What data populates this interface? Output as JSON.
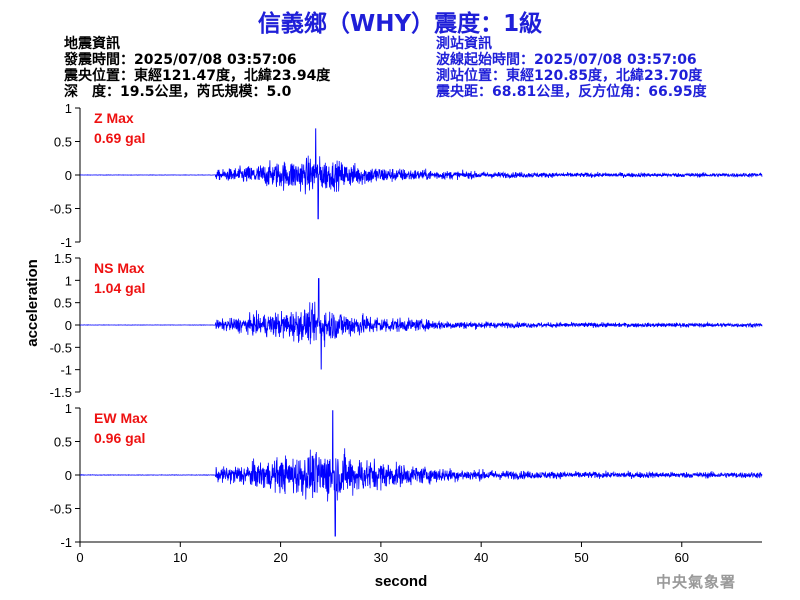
{
  "header": {
    "title": "信義鄉（WHY）震度：1級"
  },
  "earthquake_info": {
    "heading": "地震資訊",
    "origin_time": "發震時間：2025/07/08 03:57:06",
    "epicenter": "震央位置：東經121.47度，北緯23.94度",
    "depth_magnitude": "深　度：19.5公里，芮氏規模：5.0"
  },
  "station_info": {
    "heading": "測站資訊",
    "wave_start": "波線起始時間：2025/07/08 03:57:06",
    "station_location": "測站位置：東經120.85度，北緯23.70度",
    "distance_azimuth": "震央距：68.81公里，反方位角：66.95度"
  },
  "footer": {
    "agency": "中央氣象署"
  },
  "chart_data": {
    "type": "line",
    "xlabel": "second",
    "ylabel": "acceleration",
    "xlim": [
      0,
      68
    ],
    "x_ticks": [
      0,
      10,
      20,
      30,
      40,
      50,
      60
    ],
    "color": "#0000ff",
    "annotation_color": "#ee1111",
    "panels": [
      {
        "id": "z",
        "label": "Z Max",
        "max_value": "0.69 gal",
        "ylim": [
          -1,
          1
        ],
        "y_ticks": [
          1,
          0.5,
          0,
          -0.5,
          -1
        ],
        "peak": 0.69,
        "onset": 13.5,
        "peak_time": 23.5
      },
      {
        "id": "ns",
        "label": "NS Max",
        "max_value": "1.04 gal",
        "ylim": [
          -1.5,
          1.5
        ],
        "y_ticks": [
          1.5,
          1,
          0.5,
          0,
          -0.5,
          -1,
          -1.5
        ],
        "peak": 1.04,
        "onset": 13.5,
        "peak_time": 23.8
      },
      {
        "id": "ew",
        "label": "EW Max",
        "max_value": "0.96 gal",
        "ylim": [
          -1,
          1
        ],
        "y_ticks": [
          1,
          0.5,
          0,
          -0.5,
          -1
        ],
        "peak": 0.96,
        "onset": 13.5,
        "peak_time": 25.2
      }
    ]
  }
}
